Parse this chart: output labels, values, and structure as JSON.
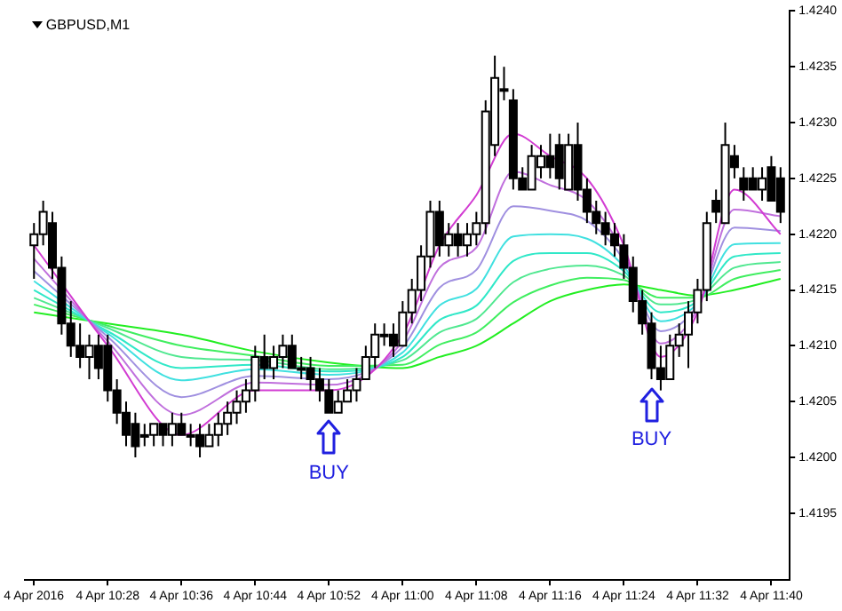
{
  "chart_data": {
    "type": "candlestick",
    "title": "GBPUSD,M1",
    "x": [
      "2016-04-04T10:20",
      "2016-04-04T10:21",
      "2016-04-04T10:22",
      "2016-04-04T10:23",
      "2016-04-04T10:24",
      "2016-04-04T10:25",
      "2016-04-04T10:26",
      "2016-04-04T10:27",
      "2016-04-04T10:28",
      "2016-04-04T10:29",
      "2016-04-04T10:30",
      "2016-04-04T10:31",
      "2016-04-04T10:32",
      "2016-04-04T10:33",
      "2016-04-04T10:34",
      "2016-04-04T10:35",
      "2016-04-04T10:36",
      "2016-04-04T10:37",
      "2016-04-04T10:38",
      "2016-04-04T10:39",
      "2016-04-04T10:40",
      "2016-04-04T10:41",
      "2016-04-04T10:42",
      "2016-04-04T10:43",
      "2016-04-04T10:44",
      "2016-04-04T10:45",
      "2016-04-04T10:46",
      "2016-04-04T10:47",
      "2016-04-04T10:48",
      "2016-04-04T10:49",
      "2016-04-04T10:50",
      "2016-04-04T10:51",
      "2016-04-04T10:52",
      "2016-04-04T10:53",
      "2016-04-04T10:54",
      "2016-04-04T10:55",
      "2016-04-04T10:56",
      "2016-04-04T10:57",
      "2016-04-04T10:58",
      "2016-04-04T10:59",
      "2016-04-04T11:00",
      "2016-04-04T11:01",
      "2016-04-04T11:02",
      "2016-04-04T11:03",
      "2016-04-04T11:04",
      "2016-04-04T11:05",
      "2016-04-04T11:06",
      "2016-04-04T11:07",
      "2016-04-04T11:08",
      "2016-04-04T11:09",
      "2016-04-04T11:10",
      "2016-04-04T11:11",
      "2016-04-04T11:12",
      "2016-04-04T11:13",
      "2016-04-04T11:14",
      "2016-04-04T11:15",
      "2016-04-04T11:16",
      "2016-04-04T11:17",
      "2016-04-04T11:18",
      "2016-04-04T11:19",
      "2016-04-04T11:20",
      "2016-04-04T11:21",
      "2016-04-04T11:22",
      "2016-04-04T11:23",
      "2016-04-04T11:24",
      "2016-04-04T11:25",
      "2016-04-04T11:26",
      "2016-04-04T11:27",
      "2016-04-04T11:28",
      "2016-04-04T11:29",
      "2016-04-04T11:30",
      "2016-04-04T11:31",
      "2016-04-04T11:32",
      "2016-04-04T11:33",
      "2016-04-04T11:34",
      "2016-04-04T11:35",
      "2016-04-04T11:36",
      "2016-04-04T11:37",
      "2016-04-04T11:38",
      "2016-04-04T11:39",
      "2016-04-04T11:40",
      "2016-04-04T11:41"
    ],
    "ohlc": [
      [
        1.4219,
        1.4221,
        1.4216,
        1.422
      ],
      [
        1.422,
        1.4223,
        1.4219,
        1.4222
      ],
      [
        1.4221,
        1.4222,
        1.4216,
        1.4217
      ],
      [
        1.4217,
        1.4218,
        1.4211,
        1.4212
      ],
      [
        1.4212,
        1.4214,
        1.4209,
        1.421
      ],
      [
        1.421,
        1.4212,
        1.4208,
        1.4209
      ],
      [
        1.4209,
        1.4211,
        1.4207,
        1.421
      ],
      [
        1.421,
        1.4211,
        1.4207,
        1.4208
      ],
      [
        1.421,
        1.4211,
        1.4205,
        1.4206
      ],
      [
        1.4206,
        1.4207,
        1.4203,
        1.4204
      ],
      [
        1.4204,
        1.4205,
        1.4201,
        1.4202
      ],
      [
        1.4203,
        1.4204,
        1.42,
        1.4201
      ],
      [
        1.4202,
        1.4203,
        1.4201,
        1.4202
      ],
      [
        1.4202,
        1.4203,
        1.4201,
        1.4203
      ],
      [
        1.4203,
        1.4203,
        1.4201,
        1.4202
      ],
      [
        1.4202,
        1.4204,
        1.4201,
        1.4203
      ],
      [
        1.4203,
        1.4204,
        1.4202,
        1.4202
      ],
      [
        1.4202,
        1.4203,
        1.4201,
        1.4202
      ],
      [
        1.4202,
        1.4203,
        1.42,
        1.4201
      ],
      [
        1.4201,
        1.4203,
        1.4201,
        1.4202
      ],
      [
        1.4202,
        1.4204,
        1.4201,
        1.4203
      ],
      [
        1.4203,
        1.4205,
        1.4202,
        1.4204
      ],
      [
        1.4204,
        1.4206,
        1.4203,
        1.4205
      ],
      [
        1.4205,
        1.4207,
        1.4204,
        1.4206
      ],
      [
        1.4206,
        1.421,
        1.4205,
        1.4209
      ],
      [
        1.4209,
        1.4211,
        1.4207,
        1.4208
      ],
      [
        1.4208,
        1.421,
        1.4207,
        1.4209
      ],
      [
        1.4209,
        1.4211,
        1.4208,
        1.421
      ],
      [
        1.421,
        1.4211,
        1.4208,
        1.4208
      ],
      [
        1.4208,
        1.4209,
        1.4207,
        1.4208
      ],
      [
        1.4208,
        1.4209,
        1.4206,
        1.4207
      ],
      [
        1.4207,
        1.4208,
        1.4205,
        1.4206
      ],
      [
        1.4206,
        1.4207,
        1.4204,
        1.4204
      ],
      [
        1.4204,
        1.4206,
        1.4204,
        1.4205
      ],
      [
        1.4205,
        1.4207,
        1.4205,
        1.4206
      ],
      [
        1.4206,
        1.4208,
        1.4205,
        1.4207
      ],
      [
        1.4207,
        1.421,
        1.4207,
        1.4209
      ],
      [
        1.4209,
        1.4212,
        1.4208,
        1.4211
      ],
      [
        1.4211,
        1.4212,
        1.421,
        1.4211
      ],
      [
        1.4211,
        1.4212,
        1.4209,
        1.421
      ],
      [
        1.421,
        1.4214,
        1.421,
        1.4213
      ],
      [
        1.4213,
        1.4216,
        1.4212,
        1.4215
      ],
      [
        1.4215,
        1.4219,
        1.4214,
        1.4218
      ],
      [
        1.4218,
        1.4223,
        1.4217,
        1.4222
      ],
      [
        1.4222,
        1.4223,
        1.4218,
        1.4219
      ],
      [
        1.4219,
        1.4221,
        1.4218,
        1.422
      ],
      [
        1.422,
        1.4221,
        1.4218,
        1.4219
      ],
      [
        1.4219,
        1.4221,
        1.4218,
        1.422
      ],
      [
        1.422,
        1.4222,
        1.4219,
        1.4221
      ],
      [
        1.4221,
        1.4232,
        1.422,
        1.4231
      ],
      [
        1.4228,
        1.4236,
        1.4227,
        1.4234
      ],
      [
        1.4233,
        1.4235,
        1.4232,
        1.4233
      ],
      [
        1.4232,
        1.4233,
        1.4224,
        1.4225
      ],
      [
        1.4225,
        1.4226,
        1.4224,
        1.4224
      ],
      [
        1.4224,
        1.4228,
        1.4224,
        1.4227
      ],
      [
        1.4226,
        1.4228,
        1.4225,
        1.4227
      ],
      [
        1.4227,
        1.4229,
        1.4225,
        1.4226
      ],
      [
        1.4228,
        1.4229,
        1.4224,
        1.4225
      ],
      [
        1.4224,
        1.4229,
        1.4224,
        1.4228
      ],
      [
        1.4228,
        1.423,
        1.4223,
        1.4224
      ],
      [
        1.4224,
        1.4225,
        1.4221,
        1.4222
      ],
      [
        1.4222,
        1.4223,
        1.422,
        1.4221
      ],
      [
        1.4221,
        1.4222,
        1.4219,
        1.422
      ],
      [
        1.422,
        1.4221,
        1.4218,
        1.4219
      ],
      [
        1.4219,
        1.422,
        1.4216,
        1.4217
      ],
      [
        1.4217,
        1.4218,
        1.4213,
        1.4214
      ],
      [
        1.4214,
        1.4215,
        1.4211,
        1.4212
      ],
      [
        1.4212,
        1.4213,
        1.4207,
        1.4208
      ],
      [
        1.4208,
        1.421,
        1.4206,
        1.4207
      ],
      [
        1.4207,
        1.4211,
        1.4207,
        1.421
      ],
      [
        1.421,
        1.4212,
        1.4209,
        1.4211
      ],
      [
        1.4211,
        1.4214,
        1.4208,
        1.4213
      ],
      [
        1.4213,
        1.4216,
        1.4212,
        1.4215
      ],
      [
        1.4215,
        1.4222,
        1.4214,
        1.4221
      ],
      [
        1.4223,
        1.4224,
        1.4221,
        1.4222
      ],
      [
        1.4221,
        1.423,
        1.4221,
        1.4228
      ],
      [
        1.4227,
        1.4228,
        1.4225,
        1.4226
      ],
      [
        1.4225,
        1.4226,
        1.4223,
        1.4224
      ],
      [
        1.4225,
        1.4226,
        1.4224,
        1.4224
      ],
      [
        1.4224,
        1.4226,
        1.4223,
        1.4225
      ],
      [
        1.4226,
        1.4227,
        1.4223,
        1.4223
      ],
      [
        1.4225,
        1.4226,
        1.4221,
        1.4222
      ]
    ],
    "series": [
      {
        "type": "line",
        "color": "#d23cd2",
        "x": [
          "2016-04-04T10:20",
          "2016-04-04T10:28",
          "2016-04-04T10:36",
          "2016-04-04T10:44",
          "2016-04-04T10:52",
          "2016-04-04T11:00",
          "2016-04-04T11:04",
          "2016-04-04T11:08",
          "2016-04-04T11:12",
          "2016-04-04T11:16",
          "2016-04-04T11:20",
          "2016-04-04T11:24",
          "2016-04-04T11:28",
          "2016-04-04T11:32",
          "2016-04-04T11:36",
          "2016-04-04T11:41"
        ],
        "values": [
          1.4219,
          1.421,
          1.4202,
          1.4206,
          1.4206,
          1.4211,
          1.4219,
          1.42235,
          1.4229,
          1.4227,
          1.4225,
          1.4219,
          1.4209,
          1.4213,
          1.4224,
          1.422
        ]
      },
      {
        "type": "line",
        "color": "#c070dd",
        "x": [
          "2016-04-04T10:20",
          "2016-04-04T10:28",
          "2016-04-04T10:36",
          "2016-04-04T10:44",
          "2016-04-04T10:52",
          "2016-04-04T11:00",
          "2016-04-04T11:04",
          "2016-04-04T11:08",
          "2016-04-04T11:12",
          "2016-04-04T11:16",
          "2016-04-04T11:20",
          "2016-04-04T11:24",
          "2016-04-04T11:28",
          "2016-04-04T11:32",
          "2016-04-04T11:36",
          "2016-04-04T11:41"
        ],
        "values": [
          1.42178,
          1.42104,
          1.42038,
          1.42067,
          1.42065,
          1.42104,
          1.4217,
          1.42188,
          1.42256,
          1.42244,
          1.4223,
          1.42183,
          1.42102,
          1.42133,
          1.42222,
          1.42216
        ]
      },
      {
        "type": "line",
        "color": "#a090e0",
        "x": [
          "2016-04-04T10:20",
          "2016-04-04T10:28",
          "2016-04-04T10:36",
          "2016-04-04T10:44",
          "2016-04-04T10:52",
          "2016-04-04T11:00",
          "2016-04-04T11:04",
          "2016-04-04T11:08",
          "2016-04-04T11:12",
          "2016-04-04T11:16",
          "2016-04-04T11:20",
          "2016-04-04T11:24",
          "2016-04-04T11:28",
          "2016-04-04T11:32",
          "2016-04-04T11:36",
          "2016-04-04T11:41"
        ],
        "values": [
          1.42167,
          1.42108,
          1.42054,
          1.42073,
          1.4207,
          1.42099,
          1.42152,
          1.42168,
          1.42225,
          1.42221,
          1.42212,
          1.42177,
          1.42113,
          1.42136,
          1.42206,
          1.42203
        ]
      },
      {
        "type": "line",
        "color": "#40e0e0",
        "x": [
          "2016-04-04T10:20",
          "2016-04-04T10:28",
          "2016-04-04T10:36",
          "2016-04-04T10:44",
          "2016-04-04T10:52",
          "2016-04-04T11:00",
          "2016-04-04T11:04",
          "2016-04-04T11:08",
          "2016-04-04T11:12",
          "2016-04-04T11:16",
          "2016-04-04T11:20",
          "2016-04-04T11:24",
          "2016-04-04T11:28",
          "2016-04-04T11:32",
          "2016-04-04T11:36",
          "2016-04-04T11:41"
        ],
        "values": [
          1.42158,
          1.42111,
          1.42069,
          1.42079,
          1.42074,
          1.42094,
          1.42136,
          1.42151,
          1.42198,
          1.422,
          1.42196,
          1.42171,
          1.42122,
          1.42138,
          1.42191,
          1.42192
        ]
      },
      {
        "type": "line",
        "color": "#30e8c8",
        "x": [
          "2016-04-04T10:20",
          "2016-04-04T10:28",
          "2016-04-04T10:36",
          "2016-04-04T10:44",
          "2016-04-04T10:52",
          "2016-04-04T11:00",
          "2016-04-04T11:04",
          "2016-04-04T11:08",
          "2016-04-04T11:12",
          "2016-04-04T11:16",
          "2016-04-04T11:20",
          "2016-04-04T11:24",
          "2016-04-04T11:28",
          "2016-04-04T11:32",
          "2016-04-04T11:36",
          "2016-04-04T11:41"
        ],
        "values": [
          1.4215,
          1.42113,
          1.4208,
          1.42083,
          1.42077,
          1.4209,
          1.42123,
          1.42136,
          1.42176,
          1.42183,
          1.42183,
          1.42167,
          1.4213,
          1.4214,
          1.4218,
          1.42183
        ]
      },
      {
        "type": "line",
        "color": "#50e890",
        "x": [
          "2016-04-04T10:20",
          "2016-04-04T10:28",
          "2016-04-04T10:36",
          "2016-04-04T10:44",
          "2016-04-04T10:52",
          "2016-04-04T11:00",
          "2016-04-04T11:04",
          "2016-04-04T11:08",
          "2016-04-04T11:12",
          "2016-04-04T11:16",
          "2016-04-04T11:20",
          "2016-04-04T11:24",
          "2016-04-04T11:28",
          "2016-04-04T11:32",
          "2016-04-04T11:36",
          "2016-04-04T11:41"
        ],
        "values": [
          1.42143,
          1.42116,
          1.4209,
          1.42087,
          1.42079,
          1.42087,
          1.42112,
          1.42124,
          1.42157,
          1.42169,
          1.42172,
          1.42163,
          1.42137,
          1.42142,
          1.4217,
          1.42175
        ]
      },
      {
        "type": "line",
        "color": "#40ee60",
        "x": [
          "2016-04-04T10:20",
          "2016-04-04T10:28",
          "2016-04-04T10:36",
          "2016-04-04T10:44",
          "2016-04-04T10:52",
          "2016-04-04T11:00",
          "2016-04-04T11:04",
          "2016-04-04T11:08",
          "2016-04-04T11:12",
          "2016-04-04T11:16",
          "2016-04-04T11:20",
          "2016-04-04T11:24",
          "2016-04-04T11:28",
          "2016-04-04T11:32",
          "2016-04-04T11:36",
          "2016-04-04T11:41"
        ],
        "values": [
          1.42137,
          1.42118,
          1.421,
          1.42091,
          1.42082,
          1.42083,
          1.42101,
          1.42112,
          1.42139,
          1.42154,
          1.42161,
          1.42159,
          1.42143,
          1.42143,
          1.4216,
          1.42168
        ]
      },
      {
        "type": "line",
        "color": "#22ee22",
        "x": [
          "2016-04-04T10:20",
          "2016-04-04T10:28",
          "2016-04-04T10:36",
          "2016-04-04T10:44",
          "2016-04-04T10:52",
          "2016-04-04T11:00",
          "2016-04-04T11:04",
          "2016-04-04T11:08",
          "2016-04-04T11:12",
          "2016-04-04T11:16",
          "2016-04-04T11:20",
          "2016-04-04T11:24",
          "2016-04-04T11:28",
          "2016-04-04T11:32",
          "2016-04-04T11:36",
          "2016-04-04T11:41"
        ],
        "values": [
          1.4213,
          1.4212,
          1.4211,
          1.42095,
          1.42085,
          1.4208,
          1.4209,
          1.421,
          1.4212,
          1.4214,
          1.4215,
          1.42155,
          1.4215,
          1.42145,
          1.4215,
          1.4216
        ]
      }
    ],
    "xlim": [
      "2016-04-04T10:19",
      "2016-04-04T11:42"
    ],
    "xticks": [
      {
        "value": "2016-04-04T10:20",
        "label": "4 Apr 2016"
      },
      {
        "value": "2016-04-04T10:28",
        "label": "4 Apr 10:28"
      },
      {
        "value": "2016-04-04T10:36",
        "label": "4 Apr 10:36"
      },
      {
        "value": "2016-04-04T10:44",
        "label": "4 Apr 10:44"
      },
      {
        "value": "2016-04-04T10:52",
        "label": "4 Apr 10:52"
      },
      {
        "value": "2016-04-04T11:00",
        "label": "4 Apr 11:00"
      },
      {
        "value": "2016-04-04T11:08",
        "label": "4 Apr 11:08"
      },
      {
        "value": "2016-04-04T11:16",
        "label": "4 Apr 11:16"
      },
      {
        "value": "2016-04-04T11:24",
        "label": "4 Apr 11:24"
      },
      {
        "value": "2016-04-04T11:32",
        "label": "4 Apr 11:32"
      },
      {
        "value": "2016-04-04T11:40",
        "label": "4 Apr 11:40"
      }
    ],
    "ylim": [
      1.4189,
      1.424
    ],
    "yticks": [
      {
        "value": 1.4195,
        "label": "1.4195"
      },
      {
        "value": 1.42,
        "label": "1.4200"
      },
      {
        "value": 1.4205,
        "label": "1.4205"
      },
      {
        "value": 1.421,
        "label": "1.4210"
      },
      {
        "value": 1.4215,
        "label": "1.4215"
      },
      {
        "value": 1.422,
        "label": "1.4220"
      },
      {
        "value": 1.4225,
        "label": "1.4225"
      },
      {
        "value": 1.423,
        "label": "1.4230"
      },
      {
        "value": 1.4235,
        "label": "1.4235"
      },
      {
        "value": 1.424,
        "label": "1.4240"
      }
    ],
    "annotations": [
      {
        "text": "BUY",
        "x": "2016-04-04T10:52",
        "y": 1.4204
      },
      {
        "text": "BUY",
        "x": "2016-04-04T11:27",
        "y": 1.4207
      }
    ],
    "grid": false,
    "marker": "none"
  }
}
